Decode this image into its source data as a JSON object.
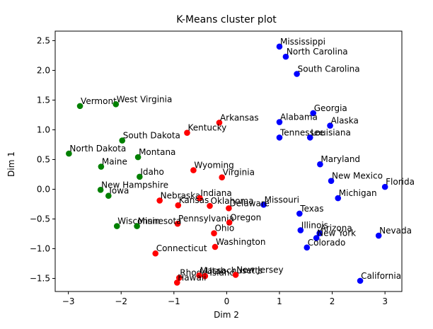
{
  "chart_data": {
    "type": "scatter",
    "title": "K-Means cluster plot",
    "xlabel": "Dim 2",
    "ylabel": "Dim 1",
    "xlim": [
      -3.25,
      3.32
    ],
    "ylim": [
      -1.72,
      2.66
    ],
    "xticks": [
      -3,
      -2,
      -1,
      0,
      1,
      2,
      3
    ],
    "yticks": [
      -1.5,
      -1.0,
      -0.5,
      0.0,
      0.5,
      1.0,
      1.5,
      2.0,
      2.5
    ],
    "ytick_labels": [
      "−1.5",
      "−1.0",
      "−0.5",
      "0.0",
      "0.5",
      "1.0",
      "1.5",
      "2.0",
      "2.5"
    ],
    "xtick_labels": [
      "−3",
      "−2",
      "−1",
      "0",
      "1",
      "2",
      "3"
    ],
    "colors": {
      "blue": "#0000ff",
      "red": "#ff0000",
      "green": "#008000"
    },
    "points": [
      {
        "label": "Mississippi",
        "x": 1.0,
        "y": 2.4,
        "color": "blue"
      },
      {
        "label": "North Carolina",
        "x": 1.12,
        "y": 2.23,
        "color": "blue"
      },
      {
        "label": "South Carolina",
        "x": 1.33,
        "y": 1.94,
        "color": "blue"
      },
      {
        "label": "Georgia",
        "x": 1.64,
        "y": 1.28,
        "color": "blue"
      },
      {
        "label": "Alabama",
        "x": 1.0,
        "y": 1.13,
        "color": "blue"
      },
      {
        "label": "Alaska",
        "x": 1.96,
        "y": 1.07,
        "color": "blue"
      },
      {
        "label": "Tennessee",
        "x": 1.0,
        "y": 0.87,
        "color": "blue"
      },
      {
        "label": "Louisiana",
        "x": 1.58,
        "y": 0.87,
        "color": "blue"
      },
      {
        "label": "Maryland",
        "x": 1.77,
        "y": 0.42,
        "color": "blue"
      },
      {
        "label": "New Mexico",
        "x": 1.98,
        "y": 0.14,
        "color": "blue"
      },
      {
        "label": "Florida",
        "x": 3.0,
        "y": 0.04,
        "color": "blue"
      },
      {
        "label": "Michigan",
        "x": 2.11,
        "y": -0.15,
        "color": "blue"
      },
      {
        "label": "Missouri",
        "x": 0.7,
        "y": -0.26,
        "color": "blue"
      },
      {
        "label": "Texas",
        "x": 1.38,
        "y": -0.41,
        "color": "blue"
      },
      {
        "label": "Illinois",
        "x": 1.4,
        "y": -0.69,
        "color": "blue"
      },
      {
        "label": "Arizona",
        "x": 1.76,
        "y": -0.74,
        "color": "blue"
      },
      {
        "label": "New York",
        "x": 1.7,
        "y": -0.82,
        "color": "blue"
      },
      {
        "label": "Nevada",
        "x": 2.88,
        "y": -0.78,
        "color": "blue"
      },
      {
        "label": "Colorado",
        "x": 1.52,
        "y": -0.98,
        "color": "blue"
      },
      {
        "label": "California",
        "x": 2.53,
        "y": -1.54,
        "color": "blue"
      },
      {
        "label": "Arkansas",
        "x": -0.14,
        "y": 1.12,
        "color": "red"
      },
      {
        "label": "Kentucky",
        "x": -0.75,
        "y": 0.95,
        "color": "red"
      },
      {
        "label": "Wyoming",
        "x": -0.63,
        "y": 0.32,
        "color": "red"
      },
      {
        "label": "Virginia",
        "x": -0.09,
        "y": 0.2,
        "color": "red"
      },
      {
        "label": "Nebraska",
        "x": -1.27,
        "y": -0.19,
        "color": "red"
      },
      {
        "label": "Indiana",
        "x": -0.51,
        "y": -0.15,
        "color": "red"
      },
      {
        "label": "Kansas",
        "x": -0.92,
        "y": -0.27,
        "color": "red"
      },
      {
        "label": "Oklahoma",
        "x": -0.32,
        "y": -0.28,
        "color": "red"
      },
      {
        "label": "Delaware",
        "x": 0.04,
        "y": -0.32,
        "color": "red"
      },
      {
        "label": "Pennsylvania",
        "x": -0.93,
        "y": -0.58,
        "color": "red"
      },
      {
        "label": "Oregon",
        "x": 0.05,
        "y": -0.56,
        "color": "red"
      },
      {
        "label": "Ohio",
        "x": -0.24,
        "y": -0.74,
        "color": "red"
      },
      {
        "label": "Washington",
        "x": -0.22,
        "y": -0.97,
        "color": "red"
      },
      {
        "label": "Connecticut",
        "x": -1.35,
        "y": -1.08,
        "color": "red"
      },
      {
        "label": "Rhode Island",
        "x": -0.9,
        "y": -1.49,
        "color": "red"
      },
      {
        "label": "Massachusetts",
        "x": -0.52,
        "y": -1.45,
        "color": "red"
      },
      {
        "label": "Utah",
        "x": -0.41,
        "y": -1.46,
        "color": "red"
      },
      {
        "label": "New Jersey",
        "x": 0.17,
        "y": -1.44,
        "color": "red"
      },
      {
        "label": "Hawaii",
        "x": -0.94,
        "y": -1.57,
        "color": "red"
      },
      {
        "label": "Vermont",
        "x": -2.78,
        "y": 1.4,
        "color": "green"
      },
      {
        "label": "West Virginia",
        "x": -2.1,
        "y": 1.43,
        "color": "green"
      },
      {
        "label": "South Dakota",
        "x": -1.98,
        "y": 0.82,
        "color": "green"
      },
      {
        "label": "North Dakota",
        "x": -2.99,
        "y": 0.6,
        "color": "green"
      },
      {
        "label": "Montana",
        "x": -1.68,
        "y": 0.54,
        "color": "green"
      },
      {
        "label": "Maine",
        "x": -2.38,
        "y": 0.38,
        "color": "green"
      },
      {
        "label": "Idaho",
        "x": -1.65,
        "y": 0.21,
        "color": "green"
      },
      {
        "label": "New Hampshire",
        "x": -2.39,
        "y": -0.01,
        "color": "green"
      },
      {
        "label": "Iowa",
        "x": -2.24,
        "y": -0.11,
        "color": "green"
      },
      {
        "label": "Wisconsin",
        "x": -2.08,
        "y": -0.62,
        "color": "green"
      },
      {
        "label": "Minnesota",
        "x": -1.7,
        "y": -0.62,
        "color": "green"
      }
    ]
  }
}
